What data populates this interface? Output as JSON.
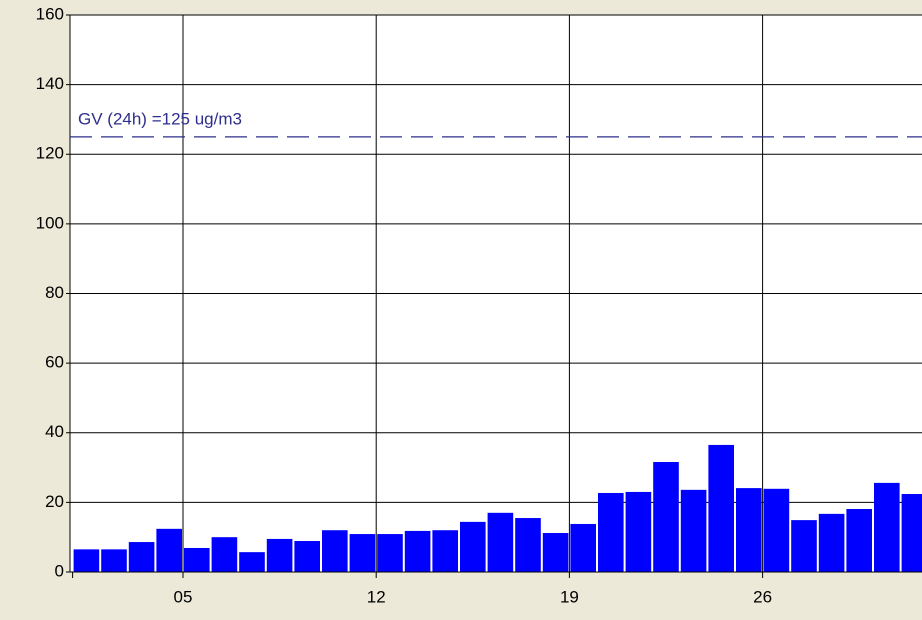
{
  "chart_data": {
    "type": "bar",
    "categories": [
      null,
      null,
      null,
      null,
      "05",
      null,
      null,
      null,
      null,
      null,
      null,
      "12",
      null,
      null,
      null,
      null,
      null,
      null,
      "19",
      null,
      null,
      null,
      null,
      null,
      null,
      "26",
      null,
      null,
      null,
      null,
      null
    ],
    "values": [
      6.5,
      6.5,
      8.6,
      12.4,
      6.9,
      10,
      5.7,
      9.5,
      8.9,
      12,
      10.9,
      10.9,
      11.8,
      12,
      14.4,
      17,
      15.5,
      11.2,
      13.8,
      22.7,
      23,
      31.6,
      23.6,
      36.5,
      24.1,
      23.9,
      14.9,
      16.7,
      18.1,
      25.6,
      22.4
    ],
    "color": "#0000ff",
    "ylim": [
      0,
      160
    ],
    "yticks": [
      0,
      20,
      40,
      60,
      80,
      100,
      120,
      140,
      160
    ],
    "grid": true,
    "reference_line": {
      "value": 125,
      "label": "GV (24h) =125 ug/m3",
      "color": "#2e2e8c"
    }
  }
}
